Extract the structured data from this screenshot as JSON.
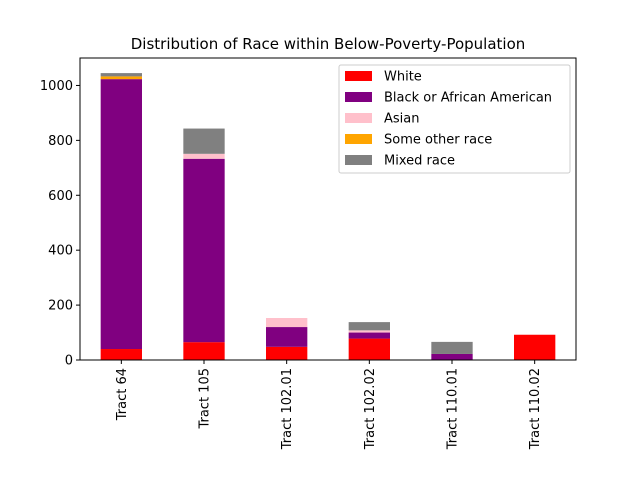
{
  "chart_data": {
    "type": "bar",
    "stacked": true,
    "title": "Distribution of Race within Below-Poverty-Population",
    "xlabel": "",
    "ylabel": "",
    "ylim": [
      0,
      1100
    ],
    "yticks": [
      0,
      200,
      400,
      600,
      800,
      1000
    ],
    "categories": [
      "Tract 64",
      "Tract 105",
      "Tract 102.01",
      "Tract 102.02",
      "Tract 110.01",
      "Tract 110.02"
    ],
    "series": [
      {
        "name": "White",
        "color": "#ff0000",
        "values": [
          40,
          65,
          48,
          78,
          0,
          92
        ]
      },
      {
        "name": "Black or African American",
        "color": "#800080",
        "values": [
          983,
          668,
          72,
          22,
          22,
          0
        ]
      },
      {
        "name": "Asian",
        "color": "#ffc0cb",
        "values": [
          0,
          18,
          33,
          8,
          0,
          0
        ]
      },
      {
        "name": "Some other race",
        "color": "#ffa500",
        "values": [
          10,
          0,
          0,
          0,
          0,
          0
        ]
      },
      {
        "name": "Mixed race",
        "color": "#808080",
        "values": [
          12,
          92,
          0,
          30,
          44,
          0
        ]
      }
    ],
    "grid": false,
    "legend_position": "upper-right"
  }
}
